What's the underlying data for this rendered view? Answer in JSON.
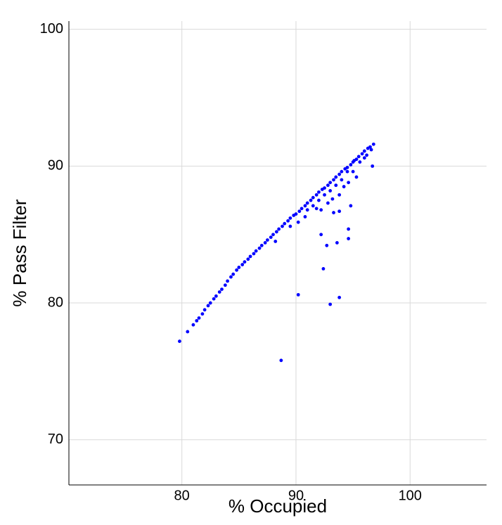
{
  "chart_data": {
    "type": "scatter",
    "x_label": "% Occupied",
    "y_label": "% Pass Filter",
    "xlim": [
      70.1,
      106.7
    ],
    "ylim": [
      66.7,
      100.6
    ],
    "xticks": [
      80,
      90,
      100
    ],
    "yticks": [
      70,
      80,
      90,
      100
    ],
    "grid": true,
    "color": "#0000ff",
    "x": [
      79.8,
      80.5,
      81,
      81.3,
      81.5,
      81.8,
      82,
      82.3,
      82.5,
      82.8,
      83,
      83.3,
      83.5,
      83.8,
      84,
      84.3,
      84.5,
      84.8,
      85,
      85.3,
      85.5,
      85.8,
      86,
      86.3,
      86.5,
      86.8,
      87,
      87.3,
      87.5,
      87.8,
      88,
      88.3,
      88.5,
      88.8,
      89,
      89.3,
      89.5,
      89.8,
      90,
      90.3,
      90.5,
      90.8,
      91,
      91.3,
      91.5,
      91.8,
      92,
      92.3,
      92.5,
      92.8,
      93,
      93.3,
      93.5,
      93.8,
      94,
      94.3,
      94.5,
      94.8,
      95,
      95.3,
      95.5,
      95.8,
      96,
      96.3,
      96.5,
      96.8,
      88.2,
      89.5,
      90.2,
      90.8,
      91,
      91.5,
      91.8,
      92,
      92.2,
      92.5,
      92.8,
      93,
      93.2,
      93.5,
      93.8,
      94,
      94.2,
      94.6,
      95,
      95.3,
      95.6,
      96.2,
      96.6,
      88.7,
      90.2,
      93,
      93.8,
      92.4,
      92.7,
      93.6,
      94.6,
      94.6,
      92.2,
      94.8,
      93.8,
      93.3,
      96.7,
      96,
      95.1,
      94.5
    ],
    "y": [
      77.2,
      77.9,
      78.4,
      78.7,
      78.9,
      79.2,
      79.5,
      79.8,
      80.0,
      80.3,
      80.5,
      80.8,
      81.0,
      81.3,
      81.6,
      81.9,
      82.1,
      82.4,
      82.6,
      82.8,
      83.0,
      83.2,
      83.4,
      83.6,
      83.8,
      84.0,
      84.2,
      84.4,
      84.6,
      84.8,
      85.0,
      85.2,
      85.4,
      85.6,
      85.8,
      86.0,
      86.2,
      86.4,
      86.5,
      86.7,
      86.9,
      87.1,
      87.3,
      87.5,
      87.7,
      87.9,
      88.1,
      88.3,
      88.4,
      88.6,
      88.8,
      89.0,
      89.2,
      89.4,
      89.6,
      89.8,
      89.9,
      90.1,
      90.3,
      90.5,
      90.7,
      90.9,
      91.1,
      91.3,
      91.4,
      91.6,
      84.5,
      85.6,
      85.9,
      86.3,
      86.8,
      87.1,
      86.9,
      87.5,
      86.8,
      87.9,
      87.3,
      88.2,
      87.6,
      88.6,
      87.9,
      89.0,
      88.5,
      88.8,
      89.6,
      89.2,
      90.3,
      90.8,
      91.2,
      75.8,
      80.6,
      79.9,
      80.4,
      82.5,
      84.2,
      84.4,
      84.7,
      85.4,
      85.0,
      87.1,
      86.7,
      86.6,
      90.0,
      90.6,
      90.4,
      89.6
    ]
  }
}
